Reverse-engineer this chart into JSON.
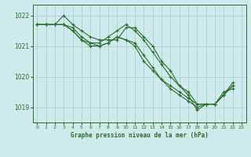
{
  "title": "Graphe pression niveau de la mer (hPa)",
  "bg_color": "#ceeaea",
  "grid_color": "#aad0d0",
  "line_color": "#2d6e2d",
  "xlim": [
    -0.5,
    23.5
  ],
  "ylim": [
    1018.5,
    1022.35
  ],
  "yticks": [
    1019,
    1020,
    1021,
    1022
  ],
  "xticks": [
    0,
    1,
    2,
    3,
    4,
    5,
    6,
    7,
    8,
    9,
    10,
    11,
    12,
    13,
    14,
    15,
    16,
    17,
    18,
    19,
    20,
    21,
    22,
    23
  ],
  "series": [
    [
      1021.7,
      1021.7,
      1021.7,
      1022.0,
      1021.7,
      1021.5,
      1021.3,
      1021.2,
      1021.2,
      1021.2,
      1021.6,
      1021.6,
      1021.3,
      1021.0,
      1020.5,
      1020.2,
      1019.7,
      1019.4,
      1018.9,
      1019.1,
      1019.1,
      1019.5,
      1019.6,
      null
    ],
    [
      1021.7,
      1021.7,
      1021.7,
      1021.7,
      1021.6,
      1021.3,
      1021.1,
      1021.1,
      1021.3,
      1021.5,
      1021.7,
      1021.5,
      1021.2,
      1020.8,
      1020.4,
      1020.0,
      1019.7,
      1019.5,
      1019.1,
      1019.1,
      1019.1,
      1019.4,
      1019.8,
      null
    ],
    [
      1021.7,
      1021.7,
      1021.7,
      1021.7,
      1021.5,
      1021.2,
      1021.1,
      1021.0,
      1021.1,
      1021.3,
      1021.2,
      1021.1,
      1020.7,
      1020.3,
      1019.9,
      1019.6,
      1019.4,
      1019.2,
      1019.0,
      1019.1,
      1019.1,
      1019.4,
      1019.7,
      null
    ],
    [
      1021.7,
      1021.7,
      1021.7,
      1021.7,
      1021.5,
      1021.2,
      1021.0,
      1021.0,
      1021.1,
      1021.3,
      1021.2,
      1021.0,
      1020.5,
      1020.2,
      1019.9,
      1019.7,
      1019.5,
      1019.3,
      1019.1,
      1019.1,
      1019.1,
      1019.4,
      1019.7,
      null
    ]
  ]
}
